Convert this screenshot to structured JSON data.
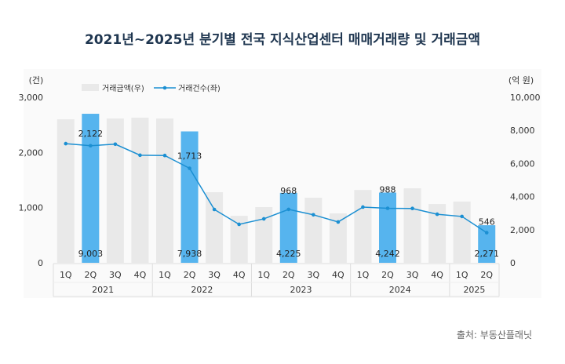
{
  "title": "2021년~2025년 분기별 전국 지식산업센터 매매거래량 및 거래금액",
  "source": "출처: 부동산플래닛",
  "chart_data": {
    "type": "bar+line",
    "title": "2021년~2025년 분기별 전국 지식산업센터 매매거래량 및 거래금액",
    "quarters": [
      "1Q",
      "2Q",
      "3Q",
      "4Q",
      "1Q",
      "2Q",
      "3Q",
      "4Q",
      "1Q",
      "2Q",
      "3Q",
      "4Q",
      "1Q",
      "2Q",
      "3Q",
      "4Q",
      "1Q",
      "2Q"
    ],
    "years": [
      {
        "label": "2021",
        "count": 4
      },
      {
        "label": "2022",
        "count": 4
      },
      {
        "label": "2023",
        "count": 4
      },
      {
        "label": "2024",
        "count": 4
      },
      {
        "label": "2025",
        "count": 2
      }
    ],
    "left_axis": {
      "unit": "(건)",
      "ylim": [
        0,
        3000
      ],
      "ticks": [
        "0",
        "1,000",
        "2,000",
        "3,000"
      ]
    },
    "right_axis": {
      "unit": "(억 원)",
      "ylim": [
        0,
        10000
      ],
      "ticks": [
        "0",
        "2,000",
        "4,000",
        "6,000",
        "8,000",
        "10,000"
      ]
    },
    "grid": false,
    "legend_position": "top-left",
    "series": [
      {
        "name": "거래금액(우)",
        "type": "bar",
        "axis": "right",
        "color": "#e9e9e9",
        "highlight_color": "#56b4ee",
        "values": [
          8670,
          9003,
          8720,
          8770,
          8720,
          7938,
          4265,
          2840,
          3365,
          4225,
          3930,
          2985,
          4400,
          4242,
          4500,
          3550,
          3700,
          2271
        ],
        "highlight": [
          1,
          5,
          9,
          13,
          17
        ],
        "labels": {
          "1": "9,003",
          "5": "7,938",
          "9": "4,225",
          "13": "4,242",
          "17": "2,271"
        }
      },
      {
        "name": "거래건수(좌)",
        "type": "line",
        "axis": "left",
        "color": "#1b8fd2",
        "values": [
          2160,
          2122,
          2150,
          1950,
          1945,
          1713,
          967,
          697,
          797,
          968,
          870,
          740,
          1010,
          988,
          985,
          880,
          840,
          546
        ],
        "labels": {
          "1": "2,122",
          "5": "1,713",
          "9": "968",
          "13": "988",
          "17": "546"
        }
      }
    ]
  }
}
